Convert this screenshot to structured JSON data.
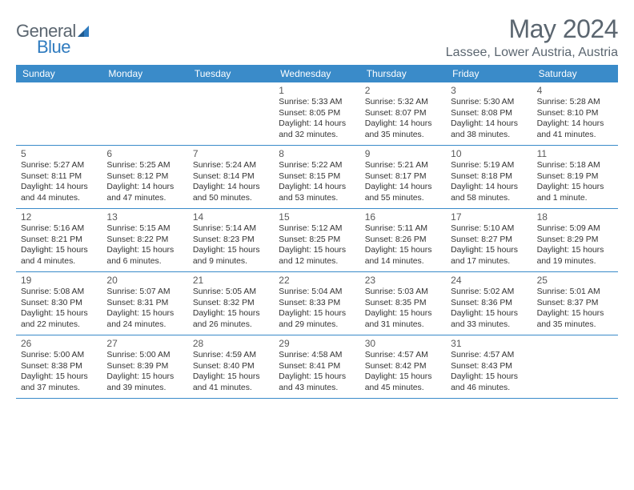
{
  "brand": {
    "name_a": "General",
    "name_b": "Blue"
  },
  "title": "May 2024",
  "location": "Lassee, Lower Austria, Austria",
  "colors": {
    "header_bg": "#3a8bc9",
    "header_text": "#ffffff",
    "row_border": "#3a8bc9",
    "text": "#333333",
    "muted": "#5b6670",
    "logo_blue": "#2f7bbf",
    "background": "#ffffff"
  },
  "typography": {
    "title_fontsize": 32,
    "location_fontsize": 16,
    "dayhead_fontsize": 12,
    "body_fontsize": 10.4
  },
  "day_headers": [
    "Sunday",
    "Monday",
    "Tuesday",
    "Wednesday",
    "Thursday",
    "Friday",
    "Saturday"
  ],
  "weeks": [
    [
      {
        "num": "",
        "l1": "",
        "l2": "",
        "l3": "",
        "l4": ""
      },
      {
        "num": "",
        "l1": "",
        "l2": "",
        "l3": "",
        "l4": ""
      },
      {
        "num": "",
        "l1": "",
        "l2": "",
        "l3": "",
        "l4": ""
      },
      {
        "num": "1",
        "l1": "Sunrise: 5:33 AM",
        "l2": "Sunset: 8:05 PM",
        "l3": "Daylight: 14 hours",
        "l4": "and 32 minutes."
      },
      {
        "num": "2",
        "l1": "Sunrise: 5:32 AM",
        "l2": "Sunset: 8:07 PM",
        "l3": "Daylight: 14 hours",
        "l4": "and 35 minutes."
      },
      {
        "num": "3",
        "l1": "Sunrise: 5:30 AM",
        "l2": "Sunset: 8:08 PM",
        "l3": "Daylight: 14 hours",
        "l4": "and 38 minutes."
      },
      {
        "num": "4",
        "l1": "Sunrise: 5:28 AM",
        "l2": "Sunset: 8:10 PM",
        "l3": "Daylight: 14 hours",
        "l4": "and 41 minutes."
      }
    ],
    [
      {
        "num": "5",
        "l1": "Sunrise: 5:27 AM",
        "l2": "Sunset: 8:11 PM",
        "l3": "Daylight: 14 hours",
        "l4": "and 44 minutes."
      },
      {
        "num": "6",
        "l1": "Sunrise: 5:25 AM",
        "l2": "Sunset: 8:12 PM",
        "l3": "Daylight: 14 hours",
        "l4": "and 47 minutes."
      },
      {
        "num": "7",
        "l1": "Sunrise: 5:24 AM",
        "l2": "Sunset: 8:14 PM",
        "l3": "Daylight: 14 hours",
        "l4": "and 50 minutes."
      },
      {
        "num": "8",
        "l1": "Sunrise: 5:22 AM",
        "l2": "Sunset: 8:15 PM",
        "l3": "Daylight: 14 hours",
        "l4": "and 53 minutes."
      },
      {
        "num": "9",
        "l1": "Sunrise: 5:21 AM",
        "l2": "Sunset: 8:17 PM",
        "l3": "Daylight: 14 hours",
        "l4": "and 55 minutes."
      },
      {
        "num": "10",
        "l1": "Sunrise: 5:19 AM",
        "l2": "Sunset: 8:18 PM",
        "l3": "Daylight: 14 hours",
        "l4": "and 58 minutes."
      },
      {
        "num": "11",
        "l1": "Sunrise: 5:18 AM",
        "l2": "Sunset: 8:19 PM",
        "l3": "Daylight: 15 hours",
        "l4": "and 1 minute."
      }
    ],
    [
      {
        "num": "12",
        "l1": "Sunrise: 5:16 AM",
        "l2": "Sunset: 8:21 PM",
        "l3": "Daylight: 15 hours",
        "l4": "and 4 minutes."
      },
      {
        "num": "13",
        "l1": "Sunrise: 5:15 AM",
        "l2": "Sunset: 8:22 PM",
        "l3": "Daylight: 15 hours",
        "l4": "and 6 minutes."
      },
      {
        "num": "14",
        "l1": "Sunrise: 5:14 AM",
        "l2": "Sunset: 8:23 PM",
        "l3": "Daylight: 15 hours",
        "l4": "and 9 minutes."
      },
      {
        "num": "15",
        "l1": "Sunrise: 5:12 AM",
        "l2": "Sunset: 8:25 PM",
        "l3": "Daylight: 15 hours",
        "l4": "and 12 minutes."
      },
      {
        "num": "16",
        "l1": "Sunrise: 5:11 AM",
        "l2": "Sunset: 8:26 PM",
        "l3": "Daylight: 15 hours",
        "l4": "and 14 minutes."
      },
      {
        "num": "17",
        "l1": "Sunrise: 5:10 AM",
        "l2": "Sunset: 8:27 PM",
        "l3": "Daylight: 15 hours",
        "l4": "and 17 minutes."
      },
      {
        "num": "18",
        "l1": "Sunrise: 5:09 AM",
        "l2": "Sunset: 8:29 PM",
        "l3": "Daylight: 15 hours",
        "l4": "and 19 minutes."
      }
    ],
    [
      {
        "num": "19",
        "l1": "Sunrise: 5:08 AM",
        "l2": "Sunset: 8:30 PM",
        "l3": "Daylight: 15 hours",
        "l4": "and 22 minutes."
      },
      {
        "num": "20",
        "l1": "Sunrise: 5:07 AM",
        "l2": "Sunset: 8:31 PM",
        "l3": "Daylight: 15 hours",
        "l4": "and 24 minutes."
      },
      {
        "num": "21",
        "l1": "Sunrise: 5:05 AM",
        "l2": "Sunset: 8:32 PM",
        "l3": "Daylight: 15 hours",
        "l4": "and 26 minutes."
      },
      {
        "num": "22",
        "l1": "Sunrise: 5:04 AM",
        "l2": "Sunset: 8:33 PM",
        "l3": "Daylight: 15 hours",
        "l4": "and 29 minutes."
      },
      {
        "num": "23",
        "l1": "Sunrise: 5:03 AM",
        "l2": "Sunset: 8:35 PM",
        "l3": "Daylight: 15 hours",
        "l4": "and 31 minutes."
      },
      {
        "num": "24",
        "l1": "Sunrise: 5:02 AM",
        "l2": "Sunset: 8:36 PM",
        "l3": "Daylight: 15 hours",
        "l4": "and 33 minutes."
      },
      {
        "num": "25",
        "l1": "Sunrise: 5:01 AM",
        "l2": "Sunset: 8:37 PM",
        "l3": "Daylight: 15 hours",
        "l4": "and 35 minutes."
      }
    ],
    [
      {
        "num": "26",
        "l1": "Sunrise: 5:00 AM",
        "l2": "Sunset: 8:38 PM",
        "l3": "Daylight: 15 hours",
        "l4": "and 37 minutes."
      },
      {
        "num": "27",
        "l1": "Sunrise: 5:00 AM",
        "l2": "Sunset: 8:39 PM",
        "l3": "Daylight: 15 hours",
        "l4": "and 39 minutes."
      },
      {
        "num": "28",
        "l1": "Sunrise: 4:59 AM",
        "l2": "Sunset: 8:40 PM",
        "l3": "Daylight: 15 hours",
        "l4": "and 41 minutes."
      },
      {
        "num": "29",
        "l1": "Sunrise: 4:58 AM",
        "l2": "Sunset: 8:41 PM",
        "l3": "Daylight: 15 hours",
        "l4": "and 43 minutes."
      },
      {
        "num": "30",
        "l1": "Sunrise: 4:57 AM",
        "l2": "Sunset: 8:42 PM",
        "l3": "Daylight: 15 hours",
        "l4": "and 45 minutes."
      },
      {
        "num": "31",
        "l1": "Sunrise: 4:57 AM",
        "l2": "Sunset: 8:43 PM",
        "l3": "Daylight: 15 hours",
        "l4": "and 46 minutes."
      },
      {
        "num": "",
        "l1": "",
        "l2": "",
        "l3": "",
        "l4": ""
      }
    ]
  ]
}
